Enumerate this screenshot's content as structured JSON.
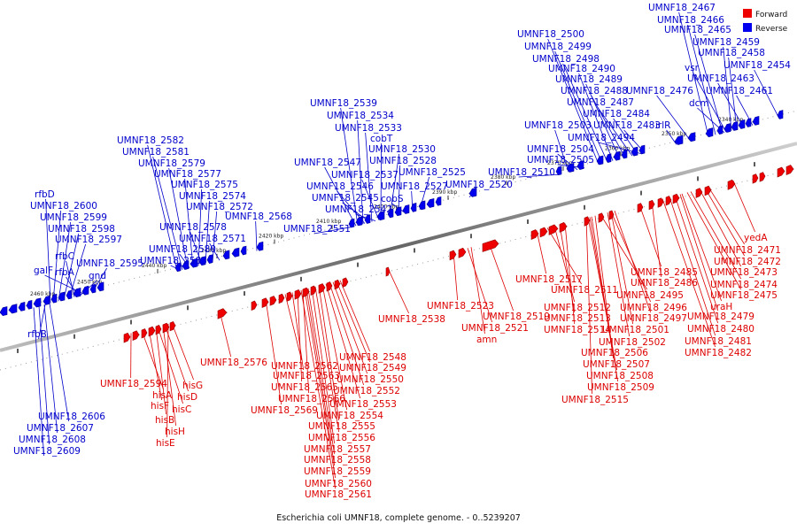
{
  "caption": "Escherichia coli UMNF18, complete genome. - 0..5239207",
  "legend": [
    {
      "label": "Forward",
      "color": "#ee0000"
    },
    {
      "label": "Reverse",
      "color": "#0000ee"
    }
  ],
  "ticks": [
    "2460 kbp",
    "2450 kbp",
    "2440 kbp",
    "2430 kbp",
    "2420 kbp",
    "2410 kbp",
    "2400 kbp",
    "2390 kbp",
    "2380 kbp",
    "2370 kbp",
    "2360 kbp",
    "2350 kbp",
    "2340 kbp"
  ],
  "forward_labels": [
    "UMNF18_2594",
    "hisA",
    "hisF",
    "hisB",
    "hisH",
    "hisE",
    "hisG",
    "hisD",
    "hisC",
    "UMNF18_2576",
    "UMNF18_2562",
    "UMNF18_2563",
    "UMNF18_2565",
    "UMNF18_2566",
    "UMNF18_2569",
    "UMNF18_2548",
    "UMNF18_2549",
    "UMNF18_2550",
    "UMNF18_2552",
    "UMNF18_2553",
    "UMNF18_2554",
    "UMNF18_2555",
    "UMNF18_2556",
    "UMNF18_2557",
    "UMNF18_2558",
    "UMNF18_2559",
    "UMNF18_2560",
    "UMNF18_2561",
    "UMNF18_2538",
    "UMNF18_2523",
    "UMNF18_2521",
    "amn",
    "UMNF18_2519",
    "UMNF18_2517",
    "UMNF18_2511",
    "UMNF18_2512",
    "UMNF18_2513",
    "UMNF18_2514",
    "UMNF18_2515",
    "UMNF18_2485",
    "UMNF18_2486",
    "UMNF18_2495",
    "UMNF18_2496",
    "UMNF18_2497",
    "UMNF18_2501",
    "UMNF18_2502",
    "UMNF18_2506",
    "UMNF18_2507",
    "UMNF18_2508",
    "UMNF18_2509",
    "yedA",
    "UMNF18_2471",
    "UMNF18_2472",
    "UMNF18_2473",
    "UMNF18_2474",
    "UMNF18_2475",
    "uraH",
    "UMNF18_2479",
    "UMNF18_2480",
    "UMNF18_2481",
    "UMNF18_2482"
  ],
  "reverse_labels": [
    "rfbB",
    "rfbD",
    "UMNF18_2600",
    "UMNF18_2599",
    "UMNF18_2598",
    "UMNF18_2597",
    "rfbC",
    "gnd",
    "rfbA",
    "UMNF18_2595",
    "galF",
    "UMNF18_2606",
    "UMNF18_2607",
    "UMNF18_2608",
    "UMNF18_2609",
    "UMNF18_2582",
    "UMNF18_2581",
    "UMNF18_2579",
    "UMNF18_2577",
    "UMNF18_2575",
    "UMNF18_2574",
    "UMNF18_2572",
    "UMNF18_2578",
    "UMNF18_2571",
    "UMNF18_2580",
    "UMNF18_2583",
    "UMNF18_2568",
    "UMNF18_2551",
    "UMNF18_2539",
    "UMNF18_2534",
    "UMNF18_2533",
    "cobT",
    "UMNF18_2530",
    "UMNF18_2528",
    "UMNF18_2547",
    "UMNF18_2537",
    "UMNF18_2546",
    "cobS",
    "UMNF18_2545",
    "UMNF18_2542",
    "UMNF18_2525",
    "UMNF18_2527",
    "UMNF18_2520",
    "UMNF18_2510",
    "UMNF18_2500",
    "UMNF18_2499",
    "UMNF18_2498",
    "UMNF18_2490",
    "UMNF18_2489",
    "UMNF18_2488",
    "UMNF18_2487",
    "UMNF18_2484",
    "UMNF18_2503",
    "UMNF18_2494",
    "UMNF18_2504",
    "UMNF18_2505",
    "UMNF18_2483",
    "irlR",
    "UMNF18_2476",
    "UMNF18_2467",
    "UMNF18_2466",
    "UMNF18_2465",
    "UMNF18_2459",
    "UMNF18_2458",
    "vsr",
    "UMNF18_2454",
    "UMNF18_2463",
    "dcm",
    "UMNF18_2461"
  ]
}
